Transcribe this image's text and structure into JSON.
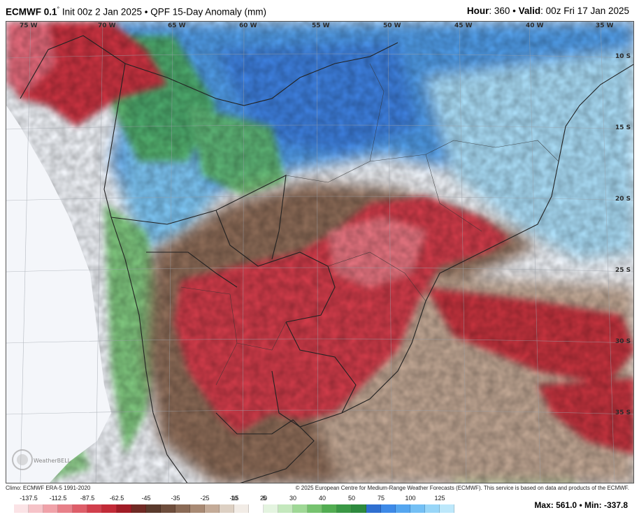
{
  "header": {
    "model": "ECMWF 0.1",
    "degree": "°",
    "init": " Init 00z 2 Jan 2025 • QPF 15-Day Anomaly (mm)",
    "hour_label": "Hour",
    "hour_value": ": 360 • ",
    "valid_label": "Valid",
    "valid_value": ": 00z Fri 17 Jan 2025"
  },
  "map": {
    "lon_labels": [
      "75 W",
      "70 W",
      "65 W",
      "60 W",
      "55 W",
      "50 W",
      "45 W",
      "40 W",
      "35 W"
    ],
    "lat_labels": [
      "10 S",
      "15 S",
      "20 S",
      "25 S",
      "30 S",
      "35 S"
    ],
    "logo_text": "WeatherBELL"
  },
  "footer": {
    "climo": "Climo: ECMWF ERA-5 1991-2020",
    "copyright": "© 2025 European Centre for Medium-Range Weather Forecasts (ECMWF). This service is based on data and products of the ECMWF.",
    "max_min": "Max: 561.0 • Min: -337.8"
  },
  "colorbar": {
    "ticks": [
      "-137.5",
      "-112.5",
      "-87.5",
      "-62.5",
      "-45",
      "-35",
      "-25",
      "-15",
      "-5",
      "10",
      "20",
      "30",
      "40",
      "50",
      "75",
      "100",
      "125"
    ],
    "colors": [
      "#fbe3e6",
      "#f6c3c8",
      "#f0a2a9",
      "#e88089",
      "#de5e69",
      "#d13f4c",
      "#c22a37",
      "#a01c26",
      "#6f2a24",
      "#5a3a2c",
      "#6e4e3c",
      "#8a6a55",
      "#a88a74",
      "#c4ab98",
      "#ddd0c3",
      "#f2ece6",
      "#ffffff",
      "#e4f4e0",
      "#c4e8bd",
      "#9fd896",
      "#76c36f",
      "#52ad52",
      "#3a9845",
      "#2d8a3e",
      "#2f6fd0",
      "#3e8ae8",
      "#55a6f0",
      "#74c0f5",
      "#98d6f8",
      "#bde8fb"
    ]
  }
}
